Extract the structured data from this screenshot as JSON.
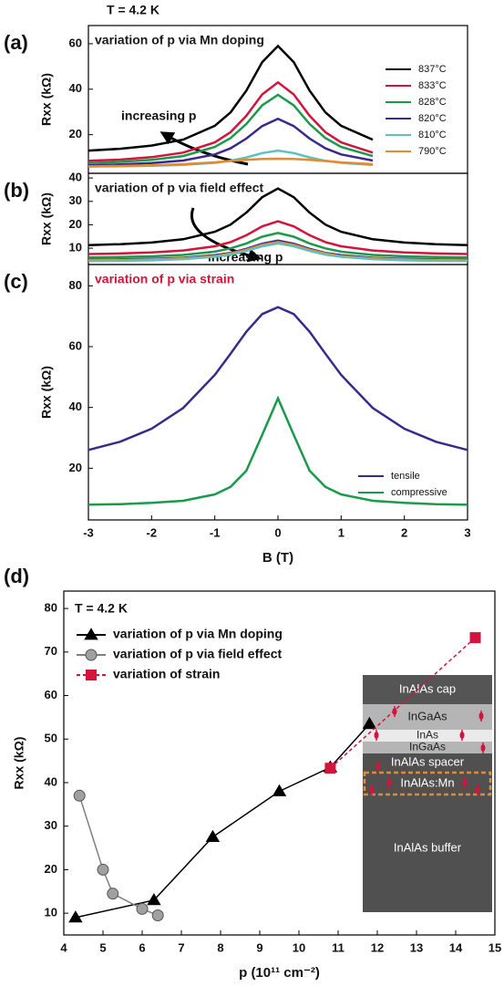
{
  "chart_data": [
    {
      "type": "line",
      "label": "(a)",
      "annotation": "T = 4.2 K",
      "title": "variation of p via Mn doping",
      "title_color": "#1a1a1a",
      "ylabel": "Rxx (kΩ)",
      "arrow_text": "increasing p",
      "x": [
        -3,
        -2.5,
        -2,
        -1.5,
        -1,
        -0.75,
        -0.5,
        -0.25,
        0,
        0.25,
        0.5,
        0.75,
        1,
        1.5,
        2,
        2.5,
        3
      ],
      "xlim": [
        -3,
        3
      ],
      "ylim": [
        3,
        68
      ],
      "yticks": [
        20,
        40,
        60
      ],
      "legend": "right",
      "series": [
        {
          "name": "837°C",
          "color": "#000000",
          "values": [
            13.0,
            13.8,
            15.2,
            17.8,
            23.9,
            29.8,
            39.4,
            51.9,
            59,
            51.9,
            39.4,
            29.8,
            23.9,
            17.8,
            null,
            null,
            null
          ]
        },
        {
          "name": "833°C",
          "color": "#d4143c",
          "values": [
            8.5,
            9.0,
            10.1,
            12.1,
            16.6,
            21.1,
            28.3,
            37.7,
            43,
            37.7,
            28.3,
            21.1,
            16.6,
            12.1,
            null,
            null,
            null
          ]
        },
        {
          "name": "828°C",
          "color": "#1a9a4a",
          "values": [
            7.5,
            8.0,
            8.9,
            10.6,
            14.6,
            18.5,
            24.7,
            32.9,
            37.5,
            32.9,
            24.7,
            18.5,
            14.6,
            10.6,
            null,
            null,
            null
          ]
        },
        {
          "name": "820°C",
          "color": "#3b2a8c",
          "values": [
            6.5,
            6.9,
            7.5,
            8.6,
            11.3,
            14.0,
            18.3,
            23.8,
            27,
            23.8,
            18.3,
            14.0,
            11.3,
            8.6,
            null,
            null,
            null
          ]
        },
        {
          "name": "810°C",
          "color": "#5fc0c0",
          "values": [
            6.0,
            6.1,
            6.3,
            6.7,
            7.6,
            8.5,
            10.0,
            11.9,
            13,
            11.9,
            10.0,
            8.5,
            7.6,
            6.7,
            null,
            null,
            null
          ]
        },
        {
          "name": "790°C",
          "color": "#e8892b",
          "values": [
            6.0,
            6.2,
            6.5,
            7.0,
            7.8,
            8.4,
            8.9,
            9.3,
            9.4,
            9.3,
            8.9,
            8.4,
            7.8,
            7.0,
            null,
            null,
            null
          ]
        }
      ]
    },
    {
      "type": "line",
      "label": "(b)",
      "title": "variation of p via field effect",
      "title_color": "#1a1a1a",
      "ylabel": "Rxx (kΩ)",
      "arrow_text": "increasing p",
      "x": [
        -3,
        -2.5,
        -2,
        -1.5,
        -1,
        -0.75,
        -0.5,
        -0.25,
        0,
        0.25,
        0.5,
        0.75,
        1,
        1.5,
        2,
        2.5,
        3
      ],
      "xlim": [
        -3,
        3
      ],
      "ylim": [
        3,
        42
      ],
      "yticks": [
        10,
        20,
        30,
        40
      ],
      "series": [
        {
          "color": "#000000",
          "values": [
            11.3,
            11.7,
            12.4,
            13.8,
            17.0,
            20.1,
            25.2,
            31.8,
            35.5,
            31.8,
            25.2,
            20.1,
            17.0,
            13.8,
            12.4,
            11.7,
            11.3
          ]
        },
        {
          "color": "#d4143c",
          "values": [
            7.5,
            7.7,
            8.2,
            9.0,
            10.8,
            12.6,
            15.5,
            19.3,
            21.5,
            19.3,
            15.5,
            12.6,
            10.8,
            9.0,
            8.2,
            7.7,
            7.5
          ]
        },
        {
          "color": "#1a9a4a",
          "values": [
            6.0,
            6.2,
            6.5,
            7.1,
            8.5,
            9.9,
            12.0,
            14.9,
            16.5,
            14.9,
            12.0,
            9.9,
            8.5,
            7.1,
            6.5,
            6.2,
            6.0
          ]
        },
        {
          "color": "#3b2a8c",
          "values": [
            5.0,
            5.2,
            5.4,
            5.9,
            7.0,
            8.0,
            9.7,
            11.9,
            13.2,
            11.9,
            9.7,
            8.0,
            7.0,
            5.9,
            5.4,
            5.2,
            5.0
          ]
        },
        {
          "color": "#e8892b",
          "values": [
            4.8,
            4.9,
            5.2,
            5.6,
            6.6,
            7.7,
            9.3,
            11.4,
            12.6,
            11.4,
            9.3,
            7.7,
            6.6,
            5.6,
            5.2,
            4.9,
            4.8
          ]
        },
        {
          "color": "#5fc0c0",
          "values": [
            4.5,
            4.6,
            4.8,
            5.3,
            6.3,
            7.2,
            8.8,
            10.8,
            12.0,
            10.8,
            8.8,
            7.2,
            6.3,
            5.3,
            4.8,
            4.6,
            4.5
          ]
        }
      ]
    },
    {
      "type": "line",
      "label": "(c)",
      "title": "variation of p via strain",
      "title_color": "#d4143c",
      "ylabel": "Rxx (kΩ)",
      "xlabel": "B (T)",
      "x": [
        -3,
        -2.5,
        -2,
        -1.5,
        -1,
        -0.75,
        -0.5,
        -0.25,
        0,
        0.25,
        0.5,
        0.75,
        1,
        1.5,
        2,
        2.5,
        3
      ],
      "xlim": [
        -3,
        3
      ],
      "xticks": [
        -3,
        -2,
        -1,
        0,
        1,
        2,
        3
      ],
      "ylim": [
        3,
        87
      ],
      "yticks": [
        20,
        40,
        60,
        80
      ],
      "legend": "lower right",
      "series": [
        {
          "name": "tensile",
          "color": "#3b2a8c",
          "values": [
            26.0,
            28.7,
            33.0,
            39.8,
            50.7,
            57.7,
            64.9,
            70.7,
            73,
            70.7,
            64.9,
            57.7,
            50.7,
            39.8,
            33.0,
            28.7,
            26.0
          ]
        },
        {
          "name": "compressive",
          "color": "#1a9a4a",
          "values": [
            8.0,
            8.2,
            8.6,
            9.3,
            11.4,
            13.9,
            19.2,
            31.0,
            43,
            31.0,
            19.2,
            13.9,
            11.4,
            9.3,
            8.6,
            8.2,
            8.0
          ]
        }
      ]
    },
    {
      "type": "line",
      "label": "(d)",
      "annotation": "T = 4.2 K",
      "ylabel": "Rxx (kΩ)",
      "xlabel": "p (10¹¹ cm⁻²)",
      "xlim": [
        4,
        15
      ],
      "xticks": [
        4,
        5,
        6,
        7,
        8,
        9,
        10,
        11,
        12,
        13,
        14,
        15
      ],
      "ylim": [
        5,
        84
      ],
      "yticks": [
        10,
        20,
        30,
        40,
        50,
        60,
        70,
        80
      ],
      "legend": "upper left",
      "series": [
        {
          "name": "variation of p via Mn doping",
          "color": "#000000",
          "marker": "triangle",
          "x": [
            4.3,
            6.3,
            7.8,
            9.5,
            10.8,
            11.8
          ],
          "values": [
            9,
            13,
            27.5,
            38,
            43.5,
            53.5
          ]
        },
        {
          "name": "variation of p via field effect",
          "color": "#808080",
          "marker": "circle",
          "x": [
            4.4,
            5.0,
            5.25,
            6.0,
            6.4
          ],
          "values": [
            37,
            20,
            14.5,
            11,
            9.5
          ]
        },
        {
          "name": "variation of strain",
          "color": "#d4143c",
          "marker": "square",
          "dash": true,
          "x": [
            10.8,
            14.5
          ],
          "values": [
            43.3,
            73.3
          ]
        }
      ],
      "inset_layers": [
        "InAlAs cap",
        "InGaAs",
        "InAs",
        "InGaAs",
        "InAlAs spacer",
        "InAlAs:Mn",
        "InAlAs buffer"
      ]
    }
  ]
}
